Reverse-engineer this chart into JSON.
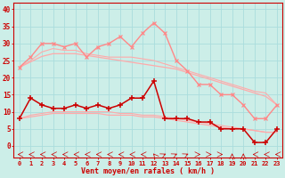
{
  "xlabel": "Vent moyen/en rafales ( km/h )",
  "background_color": "#cceee8",
  "grid_color": "#aadddd",
  "x": [
    0,
    1,
    2,
    3,
    4,
    5,
    6,
    7,
    8,
    9,
    10,
    11,
    12,
    13,
    14,
    15,
    16,
    17,
    18,
    19,
    20,
    21,
    22,
    23
  ],
  "line_gusts_pink": [
    23,
    26,
    30,
    30,
    29,
    30,
    26,
    29,
    30,
    32,
    29,
    33,
    36,
    33,
    25,
    22,
    18,
    18,
    15,
    15,
    12,
    8,
    8,
    12
  ],
  "line_wind_red": [
    8,
    14,
    12,
    11,
    11,
    12,
    11,
    12,
    11,
    12,
    14,
    14,
    19,
    8,
    8,
    8,
    7,
    7,
    5,
    5,
    5,
    1,
    1,
    5
  ],
  "line_diag_upper1": [
    23,
    24.6,
    26.2,
    27.0,
    27.0,
    27.0,
    26.5,
    26.0,
    25.5,
    25.0,
    24.5,
    24.0,
    23.5,
    23.0,
    22.5,
    21.5,
    20.5,
    19.5,
    18.5,
    17.5,
    16.5,
    15.5,
    14.5,
    12
  ],
  "line_diag_lower1": [
    8,
    8.5,
    9.0,
    9.5,
    9.5,
    9.5,
    9.5,
    9.5,
    9.0,
    9.0,
    9.0,
    8.5,
    8.5,
    8.0,
    7.5,
    7.0,
    6.5,
    6.0,
    5.5,
    5.0,
    5.0,
    4.5,
    4.0,
    4.0
  ],
  "line_diag_upper2": [
    23,
    25,
    27.5,
    28.5,
    28.0,
    28.0,
    27.0,
    26.5,
    26.0,
    26.0,
    26.0,
    25.5,
    25.0,
    24.0,
    23.0,
    22.0,
    21.0,
    20.0,
    19.0,
    18.0,
    17.0,
    16.0,
    15.5,
    12
  ],
  "line_diag_lower2": [
    8,
    9.0,
    9.5,
    10.0,
    10.0,
    10.0,
    10.0,
    10.0,
    10.0,
    9.5,
    9.5,
    9.0,
    9.0,
    8.5,
    8.0,
    7.5,
    7.0,
    6.5,
    6.0,
    5.5,
    5.0,
    4.5,
    4.0,
    4.0
  ],
  "yticks": [
    0,
    5,
    10,
    15,
    20,
    25,
    30,
    35,
    40
  ],
  "ylim": [
    -3.5,
    42
  ],
  "xlim": [
    -0.5,
    23.5
  ],
  "color_light_pink": "#ffaaaa",
  "color_med_pink": "#ff8888",
  "color_dark_red": "#cc0000",
  "color_med_red": "#ee3333",
  "color_axis": "#cc0000"
}
